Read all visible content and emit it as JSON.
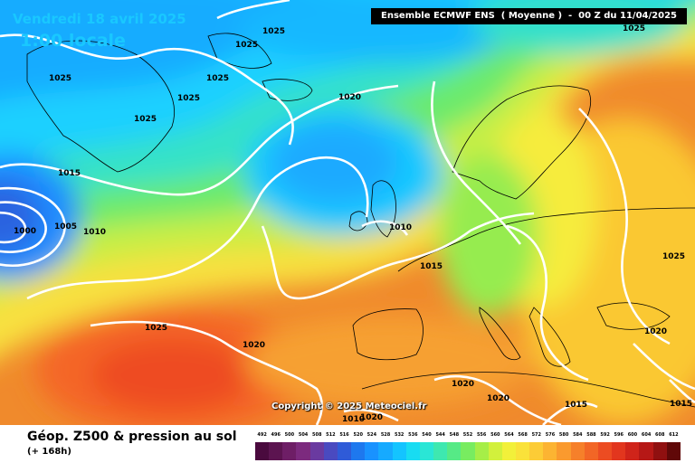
{
  "header": {
    "date": "Vendredi 18 avril 2025",
    "local_time": "1:00 locale",
    "run_info": "Ensemble ECMWF ENS  ( Moyenne )  -  00 Z du 11/04/2025"
  },
  "copyright": "Copyright © 2025 Meteociel.fr",
  "footer": {
    "title": "Géop. Z500 & pression au sol",
    "subtitle": "(+ 168h)"
  },
  "scale": {
    "labels": [
      "492",
      "496",
      "500",
      "504",
      "508",
      "512",
      "516",
      "520",
      "524",
      "528",
      "532",
      "536",
      "540",
      "544",
      "548",
      "552",
      "556",
      "560",
      "564",
      "568",
      "572",
      "576",
      "580",
      "584",
      "588",
      "592",
      "596",
      "600",
      "604",
      "608",
      "612"
    ],
    "colors": [
      "#4a0a3e",
      "#5c1450",
      "#6e1e66",
      "#7c2a7e",
      "#6a3aa0",
      "#4a4ac0",
      "#2f5bd8",
      "#1e78ee",
      "#1992ff",
      "#16aaff",
      "#14c4ff",
      "#18dcf2",
      "#2ae6d6",
      "#3ee8b0",
      "#56ea86",
      "#78ec60",
      "#a6ee48",
      "#d2f03c",
      "#f2f03a",
      "#fae23a",
      "#fccc36",
      "#fcb432",
      "#fa9a2e",
      "#f6802a",
      "#f26626",
      "#ec4c22",
      "#e2361e",
      "#d0241a",
      "#b61816",
      "#901010",
      "#600808"
    ]
  },
  "isobars": {
    "labels": [
      "1025",
      "1025",
      "1025",
      "1025",
      "1025",
      "1025",
      "1020",
      "1015",
      "1005",
      "1000",
      "1010",
      "1010",
      "1015",
      "1025",
      "1020",
      "1025",
      "1020",
      "1020",
      "1020",
      "1020",
      "1015",
      "1015",
      "1010",
      "1025"
    ]
  }
}
